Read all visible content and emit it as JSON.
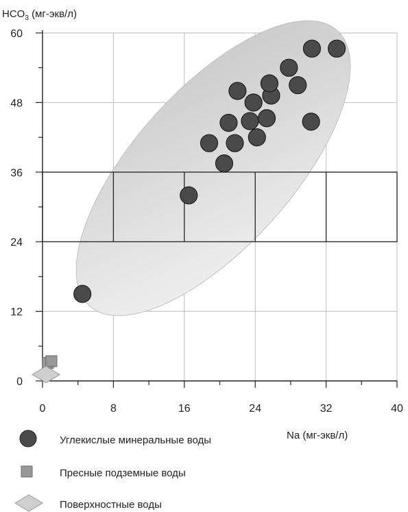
{
  "chart_data": {
    "type": "scatter",
    "ylabel_prefix": "HCO",
    "ylabel_sub": "3",
    "ylabel_suffix": " (мг-экв/л)",
    "xlabel": "Na (мг-экв/л)",
    "xlim": [
      0,
      40
    ],
    "ylim": [
      0,
      60
    ],
    "x_ticks": [
      "0",
      "8",
      "16",
      "24",
      "32",
      "40"
    ],
    "y_ticks": [
      "0",
      "12",
      "24",
      "36",
      "48",
      "60"
    ],
    "grid": true,
    "series": [
      {
        "name": "Углекислые минеральные воды",
        "marker": "circle",
        "color": "#4a4a4a",
        "points": [
          [
            4.5,
            15
          ],
          [
            16.5,
            32
          ],
          [
            20.5,
            37.5
          ],
          [
            18.8,
            41
          ],
          [
            21.7,
            41
          ],
          [
            21,
            44.5
          ],
          [
            23.4,
            44.8
          ],
          [
            24.2,
            42
          ],
          [
            25.3,
            45.3
          ],
          [
            23.8,
            48
          ],
          [
            22,
            50
          ],
          [
            25.8,
            49.2
          ],
          [
            25.6,
            51.3
          ],
          [
            28.8,
            51
          ],
          [
            27.8,
            54
          ],
          [
            30.4,
            57.3
          ],
          [
            33.2,
            57.3
          ],
          [
            30.3,
            44.7
          ]
        ]
      },
      {
        "name": "Пресные подземные воды",
        "marker": "square",
        "color": "#999999",
        "points": [
          [
            0.6,
            3.1
          ],
          [
            1.0,
            3.4
          ]
        ]
      },
      {
        "name": "Поверхностные воды",
        "marker": "diamond",
        "color": "#cfcfcf",
        "points": [
          [
            0.4,
            1.1
          ]
        ]
      }
    ],
    "highlight_band": {
      "y_range": [
        24,
        36
      ]
    },
    "legend_position": "bottom-left"
  }
}
